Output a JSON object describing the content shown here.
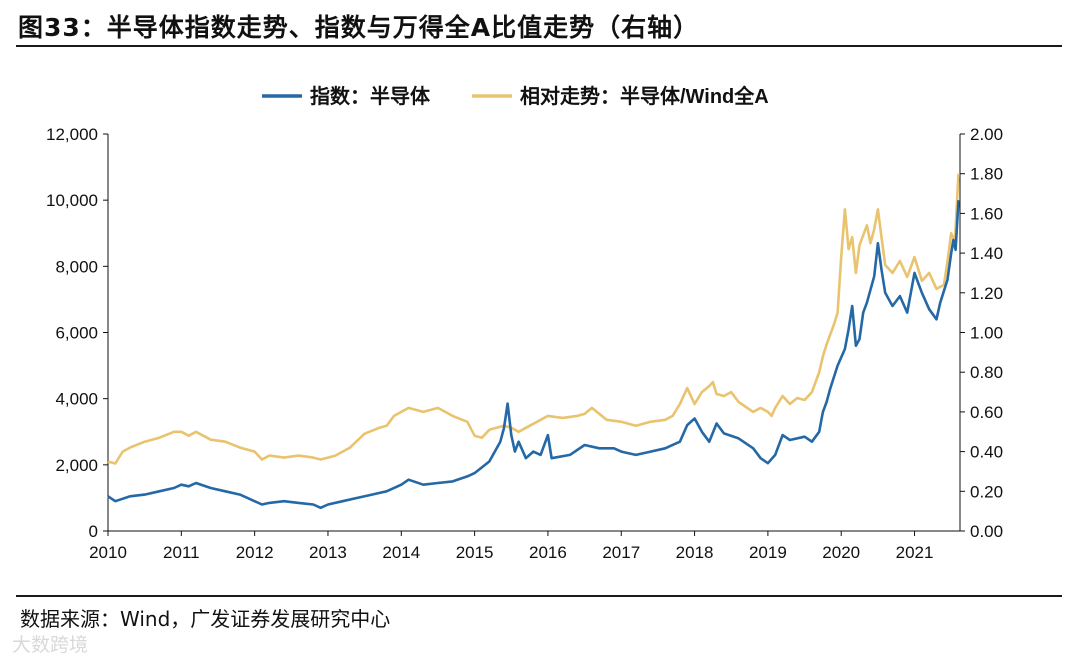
{
  "header": {
    "title": "图33：半导体指数走势、指数与万得全A比值走势（右轴）"
  },
  "footer": {
    "source": "数据来源：Wind，广发证券发展研究中心",
    "watermark": "大数跨境"
  },
  "chart_data": {
    "type": "line",
    "title": "图33：半导体指数走势、指数与万得全A比值走势（右轴）",
    "x_ticks": [
      "2010",
      "2011",
      "2012",
      "2013",
      "2014",
      "2015",
      "2016",
      "2017",
      "2018",
      "2019",
      "2020",
      "2021"
    ],
    "y_left": {
      "min": 0,
      "max": 12000,
      "ticks": [
        "0",
        "2,000",
        "4,000",
        "6,000",
        "8,000",
        "10,000",
        "12,000"
      ]
    },
    "y_right": {
      "min": 0,
      "max": 2.0,
      "ticks": [
        "0.00",
        "0.20",
        "0.40",
        "0.60",
        "0.80",
        "1.00",
        "1.20",
        "1.40",
        "1.60",
        "1.80",
        "2.00"
      ]
    },
    "legend_position": "top-center",
    "series": [
      {
        "name": "指数：半导体",
        "axis": "left",
        "color": "#2568a6",
        "points": [
          [
            2010.0,
            1050
          ],
          [
            2010.1,
            900
          ],
          [
            2010.3,
            1050
          ],
          [
            2010.5,
            1100
          ],
          [
            2010.7,
            1200
          ],
          [
            2010.9,
            1300
          ],
          [
            2011.0,
            1400
          ],
          [
            2011.1,
            1350
          ],
          [
            2011.2,
            1450
          ],
          [
            2011.4,
            1300
          ],
          [
            2011.6,
            1200
          ],
          [
            2011.8,
            1100
          ],
          [
            2012.0,
            900
          ],
          [
            2012.1,
            800
          ],
          [
            2012.2,
            850
          ],
          [
            2012.4,
            900
          ],
          [
            2012.6,
            850
          ],
          [
            2012.8,
            800
          ],
          [
            2012.9,
            700
          ],
          [
            2013.0,
            800
          ],
          [
            2013.2,
            900
          ],
          [
            2013.4,
            1000
          ],
          [
            2013.6,
            1100
          ],
          [
            2013.8,
            1200
          ],
          [
            2014.0,
            1400
          ],
          [
            2014.1,
            1550
          ],
          [
            2014.3,
            1400
          ],
          [
            2014.5,
            1450
          ],
          [
            2014.7,
            1500
          ],
          [
            2014.9,
            1650
          ],
          [
            2015.0,
            1750
          ],
          [
            2015.2,
            2100
          ],
          [
            2015.35,
            2700
          ],
          [
            2015.4,
            3100
          ],
          [
            2015.42,
            3400
          ],
          [
            2015.45,
            3850
          ],
          [
            2015.5,
            2900
          ],
          [
            2015.55,
            2400
          ],
          [
            2015.6,
            2700
          ],
          [
            2015.7,
            2200
          ],
          [
            2015.8,
            2400
          ],
          [
            2015.9,
            2300
          ],
          [
            2016.0,
            2900
          ],
          [
            2016.05,
            2200
          ],
          [
            2016.3,
            2300
          ],
          [
            2016.5,
            2600
          ],
          [
            2016.7,
            2500
          ],
          [
            2016.9,
            2500
          ],
          [
            2017.0,
            2400
          ],
          [
            2017.2,
            2300
          ],
          [
            2017.4,
            2400
          ],
          [
            2017.6,
            2500
          ],
          [
            2017.8,
            2700
          ],
          [
            2017.9,
            3200
          ],
          [
            2018.0,
            3400
          ],
          [
            2018.1,
            3000
          ],
          [
            2018.2,
            2700
          ],
          [
            2018.3,
            3250
          ],
          [
            2018.4,
            2950
          ],
          [
            2018.6,
            2800
          ],
          [
            2018.8,
            2500
          ],
          [
            2018.9,
            2200
          ],
          [
            2019.0,
            2050
          ],
          [
            2019.1,
            2300
          ],
          [
            2019.2,
            2900
          ],
          [
            2019.3,
            2750
          ],
          [
            2019.5,
            2850
          ],
          [
            2019.6,
            2700
          ],
          [
            2019.7,
            3000
          ],
          [
            2019.75,
            3600
          ],
          [
            2019.8,
            3900
          ],
          [
            2019.85,
            4300
          ],
          [
            2019.95,
            5000
          ],
          [
            2020.05,
            5500
          ],
          [
            2020.1,
            6100
          ],
          [
            2020.15,
            6800
          ],
          [
            2020.2,
            5600
          ],
          [
            2020.25,
            5800
          ],
          [
            2020.3,
            6600
          ],
          [
            2020.35,
            6900
          ],
          [
            2020.45,
            7700
          ],
          [
            2020.5,
            8700
          ],
          [
            2020.55,
            7900
          ],
          [
            2020.6,
            7200
          ],
          [
            2020.7,
            6800
          ],
          [
            2020.8,
            7100
          ],
          [
            2020.9,
            6600
          ],
          [
            2021.0,
            7800
          ],
          [
            2021.05,
            7500
          ],
          [
            2021.1,
            7200
          ],
          [
            2021.2,
            6700
          ],
          [
            2021.3,
            6400
          ],
          [
            2021.35,
            6900
          ],
          [
            2021.45,
            7600
          ],
          [
            2021.5,
            8400
          ],
          [
            2021.53,
            8800
          ],
          [
            2021.56,
            8500
          ],
          [
            2021.6,
            10000
          ]
        ]
      },
      {
        "name": "相对走势：半导体/Wind全A",
        "axis": "right",
        "color": "#e9c36e",
        "points": [
          [
            2010.0,
            0.35
          ],
          [
            2010.1,
            0.34
          ],
          [
            2010.2,
            0.4
          ],
          [
            2010.3,
            0.42
          ],
          [
            2010.5,
            0.45
          ],
          [
            2010.7,
            0.47
          ],
          [
            2010.9,
            0.5
          ],
          [
            2011.0,
            0.5
          ],
          [
            2011.1,
            0.48
          ],
          [
            2011.2,
            0.5
          ],
          [
            2011.4,
            0.46
          ],
          [
            2011.6,
            0.45
          ],
          [
            2011.8,
            0.42
          ],
          [
            2012.0,
            0.4
          ],
          [
            2012.1,
            0.36
          ],
          [
            2012.2,
            0.38
          ],
          [
            2012.4,
            0.37
          ],
          [
            2012.6,
            0.38
          ],
          [
            2012.8,
            0.37
          ],
          [
            2012.9,
            0.36
          ],
          [
            2013.0,
            0.37
          ],
          [
            2013.1,
            0.38
          ],
          [
            2013.3,
            0.42
          ],
          [
            2013.5,
            0.49
          ],
          [
            2013.7,
            0.52
          ],
          [
            2013.8,
            0.53
          ],
          [
            2013.9,
            0.58
          ],
          [
            2014.0,
            0.6
          ],
          [
            2014.1,
            0.62
          ],
          [
            2014.3,
            0.6
          ],
          [
            2014.5,
            0.62
          ],
          [
            2014.7,
            0.58
          ],
          [
            2014.9,
            0.55
          ],
          [
            2015.0,
            0.48
          ],
          [
            2015.1,
            0.47
          ],
          [
            2015.2,
            0.51
          ],
          [
            2015.4,
            0.53
          ],
          [
            2015.5,
            0.52
          ],
          [
            2015.6,
            0.5
          ],
          [
            2015.8,
            0.54
          ],
          [
            2016.0,
            0.58
          ],
          [
            2016.2,
            0.57
          ],
          [
            2016.4,
            0.58
          ],
          [
            2016.5,
            0.59
          ],
          [
            2016.6,
            0.62
          ],
          [
            2016.8,
            0.56
          ],
          [
            2017.0,
            0.55
          ],
          [
            2017.2,
            0.53
          ],
          [
            2017.4,
            0.55
          ],
          [
            2017.6,
            0.56
          ],
          [
            2017.7,
            0.58
          ],
          [
            2017.8,
            0.64
          ],
          [
            2017.9,
            0.72
          ],
          [
            2018.0,
            0.64
          ],
          [
            2018.1,
            0.7
          ],
          [
            2018.2,
            0.73
          ],
          [
            2018.25,
            0.75
          ],
          [
            2018.3,
            0.69
          ],
          [
            2018.4,
            0.68
          ],
          [
            2018.5,
            0.7
          ],
          [
            2018.6,
            0.65
          ],
          [
            2018.8,
            0.6
          ],
          [
            2018.9,
            0.62
          ],
          [
            2019.0,
            0.6
          ],
          [
            2019.05,
            0.58
          ],
          [
            2019.1,
            0.62
          ],
          [
            2019.2,
            0.68
          ],
          [
            2019.3,
            0.64
          ],
          [
            2019.4,
            0.67
          ],
          [
            2019.5,
            0.66
          ],
          [
            2019.6,
            0.7
          ],
          [
            2019.7,
            0.8
          ],
          [
            2019.75,
            0.88
          ],
          [
            2019.8,
            0.94
          ],
          [
            2019.9,
            1.04
          ],
          [
            2019.95,
            1.1
          ],
          [
            2020.0,
            1.38
          ],
          [
            2020.05,
            1.62
          ],
          [
            2020.1,
            1.42
          ],
          [
            2020.15,
            1.48
          ],
          [
            2020.2,
            1.3
          ],
          [
            2020.25,
            1.44
          ],
          [
            2020.35,
            1.54
          ],
          [
            2020.4,
            1.45
          ],
          [
            2020.45,
            1.52
          ],
          [
            2020.5,
            1.62
          ],
          [
            2020.55,
            1.48
          ],
          [
            2020.6,
            1.34
          ],
          [
            2020.7,
            1.3
          ],
          [
            2020.8,
            1.36
          ],
          [
            2020.9,
            1.28
          ],
          [
            2021.0,
            1.38
          ],
          [
            2021.05,
            1.32
          ],
          [
            2021.1,
            1.26
          ],
          [
            2021.2,
            1.3
          ],
          [
            2021.3,
            1.22
          ],
          [
            2021.4,
            1.24
          ],
          [
            2021.45,
            1.36
          ],
          [
            2021.5,
            1.5
          ],
          [
            2021.55,
            1.46
          ],
          [
            2021.6,
            1.8
          ]
        ]
      }
    ]
  }
}
